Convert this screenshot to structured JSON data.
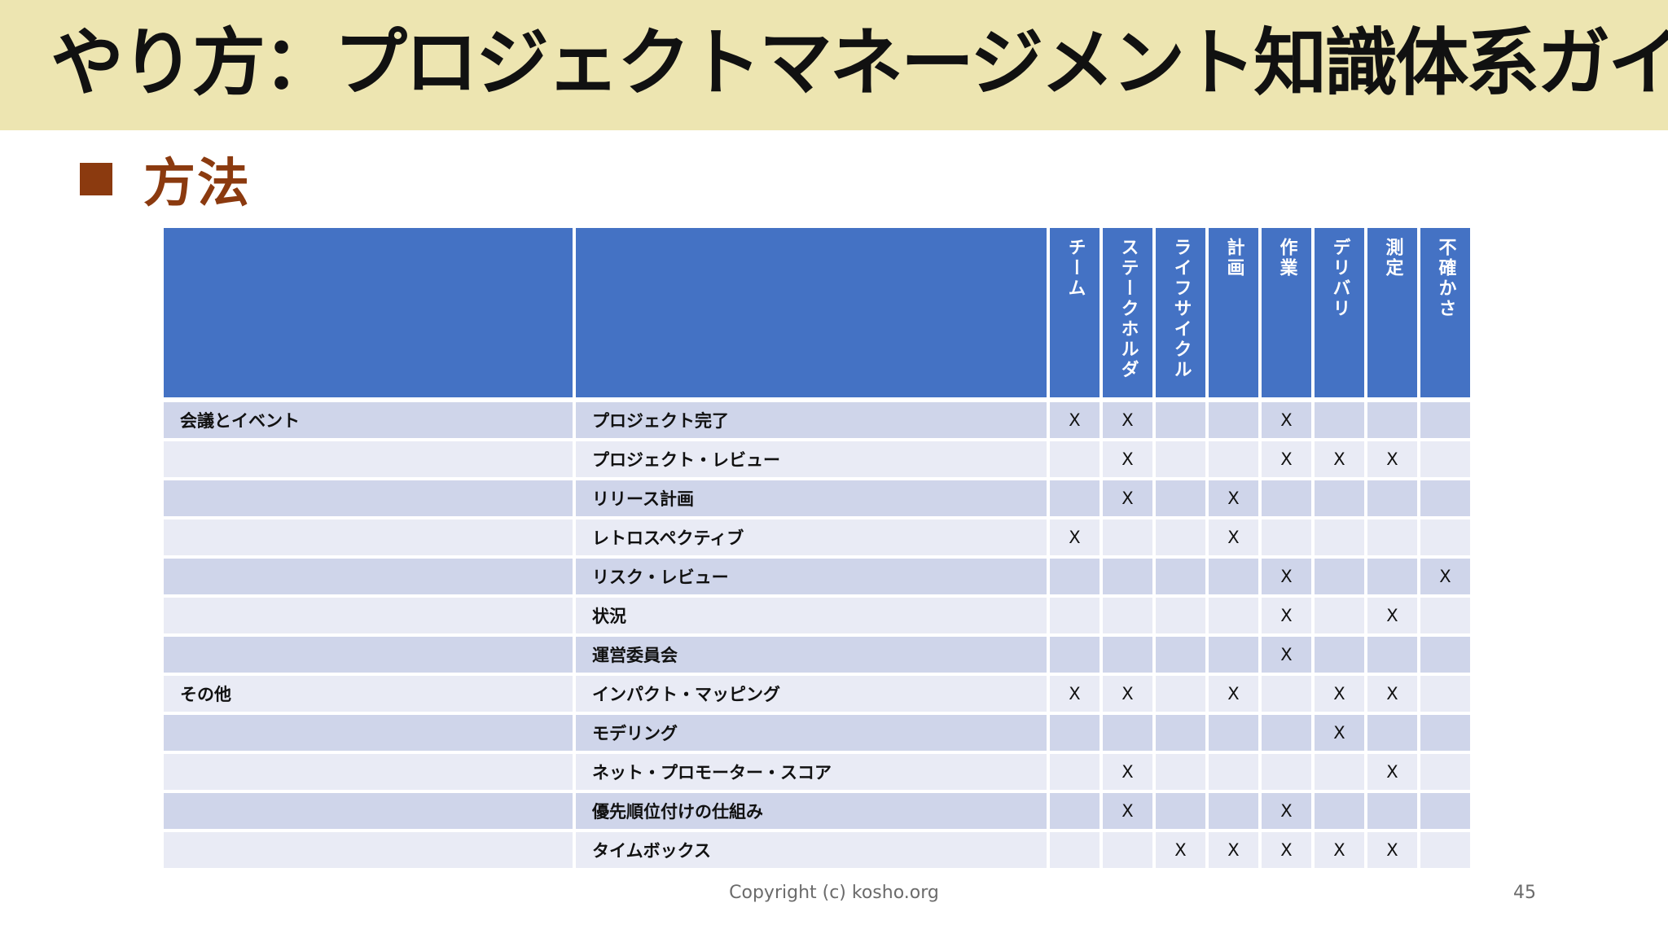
{
  "title": "やり方：プロジェクトマネージメント知識体系ガイド",
  "heading": "方法",
  "table": {
    "columns": [
      "チーム",
      "ステークホルダ",
      "ライフサイクル",
      "計画",
      "作業",
      "デリバリ",
      "測定",
      "不確かさ"
    ],
    "rows": [
      {
        "category": "会議とイベント",
        "method": "プロジェクト完了",
        "marks": [
          "X",
          "X",
          "",
          "",
          "X",
          "",
          "",
          ""
        ]
      },
      {
        "category": "",
        "method": "プロジェクト・レビュー",
        "marks": [
          "",
          "X",
          "",
          "",
          "X",
          "X",
          "X",
          ""
        ]
      },
      {
        "category": "",
        "method": "リリース計画",
        "marks": [
          "",
          "X",
          "",
          "X",
          "",
          "",
          "",
          ""
        ]
      },
      {
        "category": "",
        "method": "レトロスペクティブ",
        "marks": [
          "X",
          "",
          "",
          "X",
          "",
          "",
          "",
          ""
        ]
      },
      {
        "category": "",
        "method": "リスク・レビュー",
        "marks": [
          "",
          "",
          "",
          "",
          "X",
          "",
          "",
          "X"
        ]
      },
      {
        "category": "",
        "method": "状況",
        "marks": [
          "",
          "",
          "",
          "",
          "X",
          "",
          "X",
          ""
        ]
      },
      {
        "category": "",
        "method": "運営委員会",
        "marks": [
          "",
          "",
          "",
          "",
          "X",
          "",
          "",
          ""
        ]
      },
      {
        "category": "その他",
        "method": "インパクト・マッピング",
        "marks": [
          "X",
          "X",
          "",
          "X",
          "",
          "X",
          "X",
          ""
        ]
      },
      {
        "category": "",
        "method": "モデリング",
        "marks": [
          "",
          "",
          "",
          "",
          "",
          "X",
          "",
          ""
        ]
      },
      {
        "category": "",
        "method": "ネット・プロモーター・スコア",
        "marks": [
          "",
          "X",
          "",
          "",
          "",
          "",
          "X",
          ""
        ]
      },
      {
        "category": "",
        "method": "優先順位付けの仕組み",
        "marks": [
          "",
          "X",
          "",
          "",
          "X",
          "",
          "",
          ""
        ]
      },
      {
        "category": "",
        "method": "タイムボックス",
        "marks": [
          "",
          "",
          "X",
          "X",
          "X",
          "X",
          "X",
          ""
        ]
      }
    ]
  },
  "footer": "Copyright (c) kosho.org",
  "page_number": "45",
  "colors": {
    "title_band": "#EDE5B1",
    "heading": "#8B3A0F",
    "header_blue": "#4472C4",
    "row_dark": "#CFD5EA",
    "row_light": "#E9EBF5"
  }
}
